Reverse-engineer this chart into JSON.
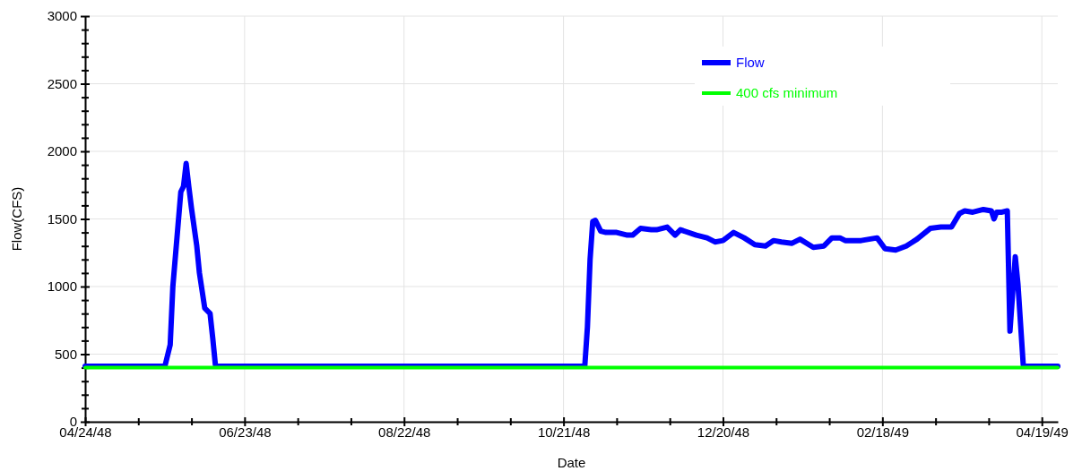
{
  "chart_data": {
    "type": "line",
    "xlabel": "Date",
    "ylabel": "Flow(CFS)",
    "xlim": [
      "1948-04-24",
      "1949-04-25"
    ],
    "xticks": [
      {
        "value": "1948-04-24",
        "label": "04/24/48"
      },
      {
        "value": "1948-05-14",
        "label": null
      },
      {
        "value": "1948-06-03",
        "label": null
      },
      {
        "value": "1948-06-23",
        "label": "06/23/48"
      },
      {
        "value": "1948-07-13",
        "label": null
      },
      {
        "value": "1948-08-02",
        "label": null
      },
      {
        "value": "1948-08-22",
        "label": "08/22/48"
      },
      {
        "value": "1948-09-11",
        "label": null
      },
      {
        "value": "1948-10-01",
        "label": null
      },
      {
        "value": "1948-10-21",
        "label": "10/21/48"
      },
      {
        "value": "1948-11-10",
        "label": null
      },
      {
        "value": "1948-11-30",
        "label": null
      },
      {
        "value": "1948-12-20",
        "label": "12/20/48"
      },
      {
        "value": "1949-01-09",
        "label": null
      },
      {
        "value": "1949-01-29",
        "label": null
      },
      {
        "value": "1949-02-18",
        "label": "02/18/49"
      },
      {
        "value": "1949-03-10",
        "label": null
      },
      {
        "value": "1949-03-30",
        "label": null
      },
      {
        "value": "1949-04-19",
        "label": "04/19/49"
      }
    ],
    "ylim": [
      0,
      3000
    ],
    "yticks": [
      0,
      {
        "value": 100,
        "label": null
      },
      {
        "value": 200,
        "label": null
      },
      {
        "value": 300,
        "label": null
      },
      {
        "value": 400,
        "label": null
      },
      500,
      {
        "value": 600,
        "label": null
      },
      {
        "value": 700,
        "label": null
      },
      {
        "value": 800,
        "label": null
      },
      {
        "value": 900,
        "label": null
      },
      1000,
      {
        "value": 1100,
        "label": null
      },
      {
        "value": 1200,
        "label": null
      },
      {
        "value": 1300,
        "label": null
      },
      {
        "value": 1400,
        "label": null
      },
      1500,
      {
        "value": 1600,
        "label": null
      },
      {
        "value": 1700,
        "label": null
      },
      {
        "value": 1800,
        "label": null
      },
      {
        "value": 1900,
        "label": null
      },
      2000,
      {
        "value": 2100,
        "label": null
      },
      {
        "value": 2200,
        "label": null
      },
      {
        "value": 2300,
        "label": null
      },
      {
        "value": 2400,
        "label": null
      },
      2500,
      {
        "value": 2600,
        "label": null
      },
      {
        "value": 2700,
        "label": null
      },
      {
        "value": 2800,
        "label": null
      },
      {
        "value": 2900,
        "label": null
      },
      3000
    ],
    "grid": true,
    "legend": "top right",
    "marker": "none",
    "line_style": "solid",
    "series": [
      {
        "name": "Flow",
        "color": "#0000ff",
        "x": [
          "1948-04-24",
          "1948-05-24",
          "1948-05-26",
          "1948-05-27",
          "1948-05-30",
          "1948-05-31",
          "1948-06-01",
          "1948-06-02",
          "1948-06-03",
          "1948-06-05",
          "1948-06-06",
          "1948-06-08",
          "1948-06-10",
          "1948-06-11",
          "1948-06-12",
          "1948-06-13",
          "1948-10-29",
          "1948-10-30",
          "1948-10-31",
          "1948-11-01",
          "1948-11-02",
          "1948-11-04",
          "1948-11-06",
          "1948-11-10",
          "1948-11-14",
          "1948-11-16",
          "1948-11-19",
          "1948-11-23",
          "1948-11-25",
          "1948-11-29",
          "1948-12-02",
          "1948-12-04",
          "1948-12-10",
          "1948-12-14",
          "1948-12-17",
          "1948-12-20",
          "1948-12-24",
          "1948-12-28",
          "1949-01-01",
          "1949-01-05",
          "1949-01-08",
          "1949-01-11",
          "1949-01-15",
          "1949-01-18",
          "1949-01-23",
          "1949-01-27",
          "1949-01-30",
          "1949-02-02",
          "1949-02-04",
          "1949-02-10",
          "1949-02-16",
          "1949-02-19",
          "1949-02-23",
          "1949-02-27",
          "1949-03-03",
          "1949-03-08",
          "1949-03-12",
          "1949-03-16",
          "1949-03-19",
          "1949-03-21",
          "1949-03-24",
          "1949-03-28",
          "1949-03-31",
          "1949-04-01",
          "1949-04-02",
          "1949-04-04",
          "1949-04-06",
          "1949-04-07",
          "1949-04-09",
          "1949-04-10",
          "1949-04-12",
          "1949-04-13",
          "1949-04-25"
        ],
        "values": [
          410,
          410,
          570,
          1000,
          1700,
          1740,
          1910,
          1740,
          1580,
          1300,
          1100,
          840,
          800,
          620,
          420,
          410,
          410,
          700,
          1200,
          1480,
          1490,
          1410,
          1400,
          1400,
          1380,
          1380,
          1430,
          1420,
          1420,
          1440,
          1380,
          1420,
          1380,
          1360,
          1330,
          1340,
          1400,
          1360,
          1310,
          1300,
          1340,
          1330,
          1320,
          1350,
          1290,
          1300,
          1360,
          1360,
          1340,
          1340,
          1360,
          1280,
          1270,
          1300,
          1350,
          1430,
          1440,
          1440,
          1540,
          1560,
          1550,
          1570,
          1560,
          1500,
          1550,
          1550,
          1560,
          670,
          1220,
          1020,
          420,
          410,
          410
        ]
      },
      {
        "name": "400 cfs minimum",
        "color": "#00ff00",
        "x": [
          "1948-04-24",
          "1949-04-25"
        ],
        "values": [
          400,
          400
        ]
      }
    ]
  }
}
